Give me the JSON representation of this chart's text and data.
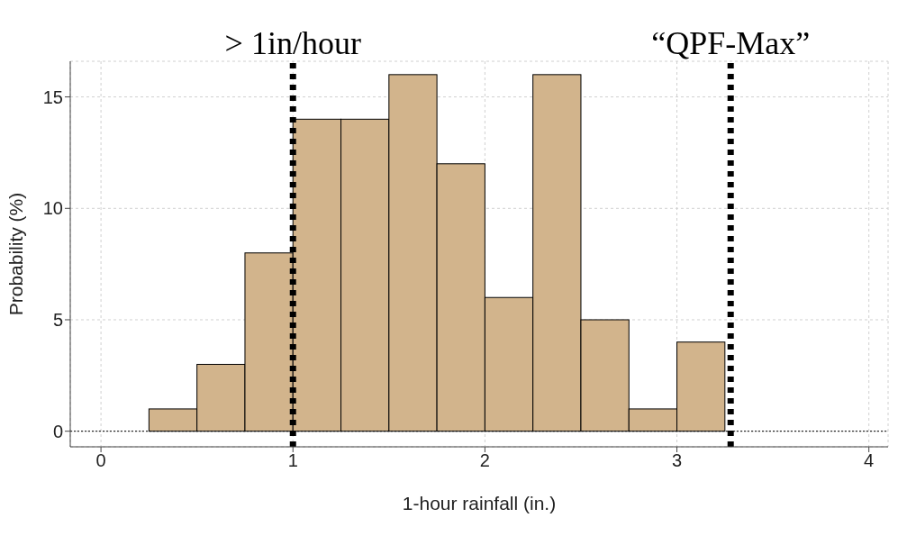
{
  "chart_data": {
    "type": "histogram",
    "xlabel": "1-hour rainfall (in.)",
    "ylabel": "Probability (%)",
    "bins": [
      0.25,
      0.5,
      0.75,
      1,
      1.25,
      1.5,
      1.75,
      2,
      2.25,
      2.5,
      2.75,
      3,
      3.25
    ],
    "values": [
      1,
      3,
      8,
      14,
      14,
      16,
      12,
      6,
      16,
      5,
      1,
      4
    ],
    "color": "#d2b48c",
    "xlim": [
      -0.16,
      4.1
    ],
    "xticks": [
      0,
      1,
      2,
      3,
      4
    ],
    "ylim": [
      -0.7,
      16.6
    ],
    "yticks": [
      0,
      5,
      10,
      15
    ],
    "grid": true,
    "ref_lines": [
      {
        "axis": "x",
        "value": 1,
        "label": "> 1in/hour",
        "color": "#000000",
        "line_style": "dotted"
      },
      {
        "axis": "x",
        "value": 3.28,
        "label": "“QPF-Max”",
        "color": "#000000",
        "line_style": "dotted"
      },
      {
        "axis": "y",
        "value": 0,
        "color": "#000000",
        "line_style": "dotted"
      }
    ]
  }
}
